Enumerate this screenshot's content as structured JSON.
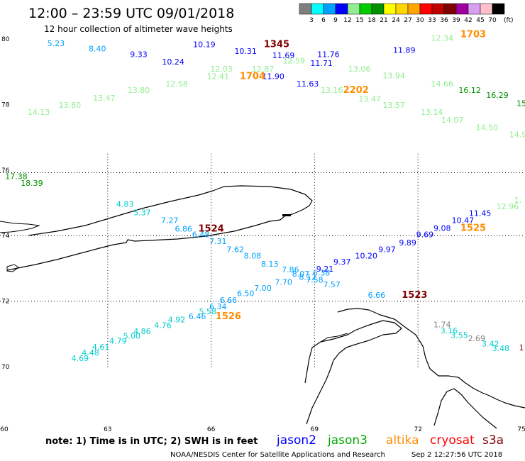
{
  "title": "12:00 – 23:59 UTC 09/01/2018",
  "subtitle": "12 hour collection of altimeter wave heights",
  "scale": {
    "unit": "(ft)",
    "bins": [
      {
        "color": "#7f7f7f",
        "label": "3"
      },
      {
        "color": "#00ffff",
        "label": "6"
      },
      {
        "color": "#00a0ff",
        "label": "9"
      },
      {
        "color": "#0000ff",
        "label": "12"
      },
      {
        "color": "#90ee90",
        "label": "15"
      },
      {
        "color": "#00cc00",
        "label": "18"
      },
      {
        "color": "#009000",
        "label": "21"
      },
      {
        "color": "#ffff00",
        "label": "24"
      },
      {
        "color": "#ffd700",
        "label": "27"
      },
      {
        "color": "#ffa500",
        "label": "30"
      },
      {
        "color": "#ff0000",
        "label": "33"
      },
      {
        "color": "#c00000",
        "label": "36"
      },
      {
        "color": "#800000",
        "label": "39"
      },
      {
        "color": "#a000a0",
        "label": "42"
      },
      {
        "color": "#d8a0f0",
        "label": "45"
      },
      {
        "color": "#ffc0cb",
        "label": "70"
      },
      {
        "color": "#000000",
        "label": ""
      }
    ]
  },
  "lat_labels": [
    {
      "label": "80",
      "lat": 80
    },
    {
      "label": "78",
      "lat": 78
    },
    {
      "label": "76",
      "lat": 76
    },
    {
      "label": "74",
      "lat": 74
    },
    {
      "label": "72",
      "lat": 72
    },
    {
      "label": "70",
      "lat": 70
    }
  ],
  "lon_labels": [
    {
      "label": "60",
      "lon": 60
    },
    {
      "label": "63",
      "lon": 63
    },
    {
      "label": "66",
      "lon": 66
    },
    {
      "label": "69",
      "lon": 69
    },
    {
      "label": "72",
      "lon": 72
    },
    {
      "label": "75",
      "lon": 75
    }
  ],
  "obs": [
    {
      "v": "5.23",
      "lon": 61.5,
      "lat": 79.78,
      "c": "#00a0ff"
    },
    {
      "v": "8.40",
      "lon": 62.7,
      "lat": 79.62,
      "c": "#00a0ff"
    },
    {
      "v": "9.33",
      "lon": 63.9,
      "lat": 79.45,
      "c": "#0000ff"
    },
    {
      "v": "10.19",
      "lon": 65.8,
      "lat": 79.75,
      "c": "#0000ff"
    },
    {
      "v": "10.31",
      "lon": 67.0,
      "lat": 79.55,
      "c": "#0000ff"
    },
    {
      "v": "11.69",
      "lon": 68.1,
      "lat": 79.42,
      "c": "#0000ff"
    },
    {
      "v": "11.76",
      "lon": 69.4,
      "lat": 79.45,
      "c": "#0000ff"
    },
    {
      "v": "11.89",
      "lon": 71.6,
      "lat": 79.58,
      "c": "#0000ff"
    },
    {
      "v": "10.24",
      "lon": 64.9,
      "lat": 79.22,
      "c": "#0000ff"
    },
    {
      "v": "11.71",
      "lon": 69.2,
      "lat": 79.18,
      "c": "#0000ff"
    },
    {
      "v": "12.03",
      "lon": 66.3,
      "lat": 79.0,
      "c": "#90ee90"
    },
    {
      "v": "12.87",
      "lon": 67.5,
      "lat": 79.0,
      "c": "#90ee90"
    },
    {
      "v": "12.59",
      "lon": 68.4,
      "lat": 79.25,
      "c": "#90ee90"
    },
    {
      "v": "12.41",
      "lon": 66.2,
      "lat": 78.78,
      "c": "#90ee90"
    },
    {
      "v": "11.90",
      "lon": 67.8,
      "lat": 78.78,
      "c": "#0000ff"
    },
    {
      "v": "12.58",
      "lon": 65.0,
      "lat": 78.55,
      "c": "#90ee90"
    },
    {
      "v": "11.63",
      "lon": 68.8,
      "lat": 78.55,
      "c": "#0000ff"
    },
    {
      "v": "13.80",
      "lon": 63.9,
      "lat": 78.35,
      "c": "#90ee90"
    },
    {
      "v": "13.16",
      "lon": 69.5,
      "lat": 78.35,
      "c": "#90ee90"
    },
    {
      "v": "13.47",
      "lon": 62.9,
      "lat": 78.12,
      "c": "#90ee90"
    },
    {
      "v": "13.47",
      "lon": 70.6,
      "lat": 78.08,
      "c": "#90ee90"
    },
    {
      "v": "13.80",
      "lon": 61.9,
      "lat": 77.9,
      "c": "#90ee90"
    },
    {
      "v": "14.13",
      "lon": 61.0,
      "lat": 77.68,
      "c": "#90ee90"
    },
    {
      "v": "13.06",
      "lon": 70.3,
      "lat": 79.0,
      "c": "#90ee90"
    },
    {
      "v": "13.94",
      "lon": 71.3,
      "lat": 78.8,
      "c": "#90ee90"
    },
    {
      "v": "12.34",
      "lon": 72.7,
      "lat": 79.95,
      "c": "#90ee90"
    },
    {
      "v": "14.66",
      "lon": 72.7,
      "lat": 78.55,
      "c": "#90ee90"
    },
    {
      "v": "16.12",
      "lon": 73.5,
      "lat": 78.35,
      "c": "#009000"
    },
    {
      "v": "16.29",
      "lon": 74.3,
      "lat": 78.2,
      "c": "#009000"
    },
    {
      "v": "13.57",
      "lon": 71.3,
      "lat": 77.9,
      "c": "#90ee90"
    },
    {
      "v": "13.14",
      "lon": 72.4,
      "lat": 77.68,
      "c": "#90ee90"
    },
    {
      "v": "14.07",
      "lon": 73.0,
      "lat": 77.45,
      "c": "#90ee90"
    },
    {
      "v": "14.50",
      "lon": 74.0,
      "lat": 77.22,
      "c": "#90ee90"
    },
    {
      "v": "15",
      "lon": 75.0,
      "lat": 77.95,
      "c": "#009000"
    },
    {
      "v": "14.9",
      "lon": 74.9,
      "lat": 77.0,
      "c": "#90ee90"
    },
    {
      "v": "17.38",
      "lon": 60.35,
      "lat": 75.72,
      "c": "#009000"
    },
    {
      "v": "18.39",
      "lon": 60.8,
      "lat": 75.52,
      "c": "#009000"
    },
    {
      "v": "1.",
      "lon": 74.9,
      "lat": 75.0,
      "c": "#90ee90"
    },
    {
      "v": "12.96",
      "lon": 74.6,
      "lat": 74.8,
      "c": "#90ee90"
    },
    {
      "v": "11.45",
      "lon": 73.8,
      "lat": 74.6,
      "c": "#0000ff"
    },
    {
      "v": "10.47",
      "lon": 73.3,
      "lat": 74.38,
      "c": "#0000ff"
    },
    {
      "v": "9.08",
      "lon": 72.7,
      "lat": 74.15,
      "c": "#0000ff"
    },
    {
      "v": "9.69",
      "lon": 72.2,
      "lat": 73.95,
      "c": "#0000ff"
    },
    {
      "v": "9.89",
      "lon": 71.7,
      "lat": 73.7,
      "c": "#0000ff"
    },
    {
      "v": "9.97",
      "lon": 71.1,
      "lat": 73.5,
      "c": "#0000ff"
    },
    {
      "v": "10.20",
      "lon": 70.5,
      "lat": 73.3,
      "c": "#0000ff"
    },
    {
      "v": "9.37",
      "lon": 69.8,
      "lat": 73.12,
      "c": "#0000ff"
    },
    {
      "v": "9.21",
      "lon": 69.3,
      "lat": 72.9,
      "c": "#0000ff"
    },
    {
      "v": "4.83",
      "lon": 63.5,
      "lat": 74.88,
      "c": "#00cccc"
    },
    {
      "v": "5.37",
      "lon": 64.0,
      "lat": 74.62,
      "c": "#00cccc"
    },
    {
      "v": "7.27",
      "lon": 64.8,
      "lat": 74.38,
      "c": "#00a0ff"
    },
    {
      "v": "6.86",
      "lon": 65.2,
      "lat": 74.12,
      "c": "#00a0ff"
    },
    {
      "v": "6.48",
      "lon": 65.7,
      "lat": 73.95,
      "c": "#00a0ff"
    },
    {
      "v": "7.31",
      "lon": 66.2,
      "lat": 73.75,
      "c": "#00a0ff"
    },
    {
      "v": "7.62",
      "lon": 66.7,
      "lat": 73.5,
      "c": "#00a0ff"
    },
    {
      "v": "8.08",
      "lon": 67.2,
      "lat": 73.3,
      "c": "#00a0ff"
    },
    {
      "v": "8.13",
      "lon": 67.7,
      "lat": 73.05,
      "c": "#00a0ff"
    },
    {
      "v": "7.86",
      "lon": 68.3,
      "lat": 72.88,
      "c": "#00a0ff"
    },
    {
      "v": "8.07",
      "lon": 68.6,
      "lat": 72.75,
      "c": "#00a0ff"
    },
    {
      "v": "6.38",
      "lon": 69.2,
      "lat": 72.78,
      "c": "#00a0ff"
    },
    {
      "v": "8.12",
      "lon": 68.8,
      "lat": 72.65,
      "c": "#00a0ff"
    },
    {
      "v": "7.58",
      "lon": 69.0,
      "lat": 72.56,
      "c": "#00a0ff"
    },
    {
      "v": "7.70",
      "lon": 68.1,
      "lat": 72.5,
      "c": "#00a0ff"
    },
    {
      "v": "7.57",
      "lon": 69.5,
      "lat": 72.42,
      "c": "#00a0ff"
    },
    {
      "v": "7.00",
      "lon": 67.5,
      "lat": 72.32,
      "c": "#00a0ff"
    },
    {
      "v": "6.50",
      "lon": 67.0,
      "lat": 72.15,
      "c": "#00a0ff"
    },
    {
      "v": "6.66",
      "lon": 70.8,
      "lat": 72.1,
      "c": "#00a0ff"
    },
    {
      "v": "6.66",
      "lon": 66.5,
      "lat": 71.95,
      "c": "#00a0ff"
    },
    {
      "v": "6.34",
      "lon": 66.2,
      "lat": 71.75,
      "c": "#00a0ff"
    },
    {
      "v": "5.58",
      "lon": 65.9,
      "lat": 71.6,
      "c": "#00cccc"
    },
    {
      "v": "6.46",
      "lon": 65.6,
      "lat": 71.45,
      "c": "#00a0ff"
    },
    {
      "v": "4.92",
      "lon": 65.0,
      "lat": 71.35,
      "c": "#00cccc"
    },
    {
      "v": "4.76",
      "lon": 64.6,
      "lat": 71.18,
      "c": "#00cccc"
    },
    {
      "v": "4.86",
      "lon": 64.0,
      "lat": 71.0,
      "c": "#00cccc"
    },
    {
      "v": "5.00",
      "lon": 63.7,
      "lat": 70.85,
      "c": "#00cccc"
    },
    {
      "v": "4.79",
      "lon": 63.3,
      "lat": 70.7,
      "c": "#00cccc"
    },
    {
      "v": "4.61",
      "lon": 62.8,
      "lat": 70.52,
      "c": "#00cccc"
    },
    {
      "v": "4.48",
      "lon": 62.5,
      "lat": 70.35,
      "c": "#00cccc"
    },
    {
      "v": "4.69",
      "lon": 62.2,
      "lat": 70.17,
      "c": "#00cccc"
    },
    {
      "v": "1.74",
      "lon": 72.7,
      "lat": 71.2,
      "c": "#7f7f7f"
    },
    {
      "v": "3.16",
      "lon": 72.9,
      "lat": 71.02,
      "c": "#00cccc"
    },
    {
      "v": "3.55",
      "lon": 73.2,
      "lat": 70.88,
      "c": "#00cccc"
    },
    {
      "v": "2.69",
      "lon": 73.7,
      "lat": 70.78,
      "c": "#7f7f7f"
    },
    {
      "v": "3.42",
      "lon": 74.1,
      "lat": 70.62,
      "c": "#00cccc"
    },
    {
      "v": "3.48",
      "lon": 74.4,
      "lat": 70.48,
      "c": "#00cccc"
    },
    {
      "v": "1",
      "lon": 75.0,
      "lat": 70.5,
      "c": "#800000"
    }
  ],
  "times": [
    {
      "v": "1345",
      "lon": 67.9,
      "lat": 79.75,
      "c": "#800000"
    },
    {
      "v": "1703",
      "lon": 73.6,
      "lat": 80.05,
      "c": "#ff8c00"
    },
    {
      "v": "1704",
      "lon": 67.2,
      "lat": 78.78,
      "c": "#ff8c00"
    },
    {
      "v": "2202",
      "lon": 70.2,
      "lat": 78.35,
      "c": "#ff8c00"
    },
    {
      "v": "1524",
      "lon": 66.0,
      "lat": 74.12,
      "c": "#800000"
    },
    {
      "v": "1525",
      "lon": 73.6,
      "lat": 74.15,
      "c": "#ff8c00"
    },
    {
      "v": "1523",
      "lon": 71.9,
      "lat": 72.1,
      "c": "#800000"
    },
    {
      "v": "1526",
      "lon": 66.5,
      "lat": 71.45,
      "c": "#ff8c00"
    }
  ],
  "note": "note: 1) Time is in UTC; 2) SWH is in feet",
  "legend": [
    {
      "name": "jason2",
      "color": "#0000ff"
    },
    {
      "name": "jason3",
      "color": "#00aa00"
    },
    {
      "name": "altika",
      "color": "#ff8c00"
    },
    {
      "name": "cryosat",
      "color": "#ff0000"
    },
    {
      "name": "s3a",
      "color": "#800000"
    }
  ],
  "footer_center": "NOAA/NESDIS Center for Satellite Applications and Research",
  "footer_right": "Sep  2 12:27:56 UTC 2018"
}
